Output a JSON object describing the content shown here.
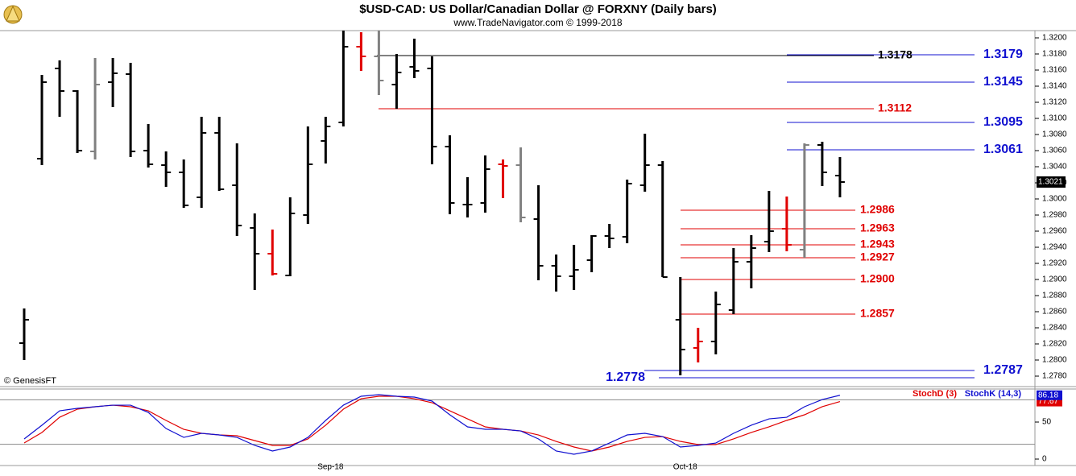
{
  "chart_data": [
    {
      "type": "ohlc",
      "title": "$USD-CAD:  US Dollar/Canadian Dollar @ FORXNY  (Daily bars)",
      "subtitle": "www.TradeNavigator.com © 1999-2018",
      "copyright": "© GenesisFT",
      "categories": [
        null,
        null,
        null,
        null,
        null,
        null,
        null,
        null,
        null,
        null,
        null,
        null,
        null,
        null,
        null,
        null,
        null,
        "Sep-18",
        null,
        null,
        null,
        null,
        null,
        null,
        null,
        null,
        null,
        null,
        null,
        null,
        null,
        null,
        null,
        null,
        null,
        null,
        null,
        "Oct-18",
        null,
        null,
        null,
        null,
        null,
        null,
        null,
        null,
        null
      ],
      "open": [
        1.2821,
        1.305,
        1.3162,
        1.3134,
        1.3059,
        1.3145,
        1.3155,
        1.306,
        1.3042,
        1.3033,
        1.3002,
        1.3082,
        1.3017,
        1.2964,
        1.2932,
        1.2905,
        1.298,
        1.3072,
        1.3095,
        1.3189,
        1.3177,
        1.3142,
        1.3164,
        1.3162,
        1.3065,
        1.2993,
        1.2995,
        1.3043,
        1.3042,
        1.2975,
        1.2917,
        1.2904,
        1.2924,
        1.2954,
        1.2953,
        1.3017,
        1.3042,
        1.285,
        1.2815,
        1.2823,
        1.2862,
        1.2922,
        1.2947,
        1.2963,
        1.2937,
        1.3067,
        1.3029
      ],
      "high": [
        1.2864,
        1.3154,
        1.3172,
        1.3135,
        1.3175,
        1.3175,
        1.3169,
        1.3093,
        1.3059,
        1.3049,
        1.3102,
        1.3102,
        1.3069,
        1.2982,
        1.2962,
        1.3002,
        1.309,
        1.3102,
        1.3209,
        1.3207,
        1.3209,
        1.318,
        1.3199,
        1.3177,
        1.3079,
        1.3027,
        1.3054,
        1.3049,
        1.3064,
        1.3017,
        1.2931,
        1.2943,
        1.2955,
        1.2969,
        1.3024,
        1.3081,
        1.3047,
        1.2903,
        1.284,
        1.2885,
        1.2939,
        1.2955,
        1.301,
        1.3003,
        1.3069,
        1.3071,
        1.3052
      ],
      "low": [
        1.28,
        1.3042,
        1.3102,
        1.3057,
        1.3049,
        1.3114,
        1.3052,
        1.3039,
        1.3015,
        1.2989,
        1.2989,
        1.301,
        1.2954,
        1.2887,
        1.2905,
        1.2904,
        1.2969,
        1.3044,
        1.309,
        1.3159,
        1.3129,
        1.3112,
        1.315,
        1.3043,
        1.2981,
        1.2977,
        1.2983,
        1.3001,
        1.2971,
        1.2899,
        1.2885,
        1.2887,
        1.2909,
        1.2939,
        1.2945,
        1.3009,
        1.2903,
        1.2781,
        1.2797,
        1.2807,
        1.2857,
        1.2889,
        1.2934,
        1.2935,
        1.2927,
        1.3016,
        1.3002
      ],
      "close": [
        1.285,
        1.3145,
        1.3134,
        1.306,
        1.3142,
        1.3156,
        1.3059,
        1.3043,
        1.3033,
        1.2992,
        1.3082,
        1.3012,
        1.2967,
        1.2932,
        1.2907,
        1.2982,
        1.3043,
        1.309,
        1.3189,
        1.3177,
        1.3147,
        1.3157,
        1.3159,
        1.3065,
        1.2995,
        1.2993,
        1.3037,
        1.3041,
        1.2977,
        1.2917,
        1.2904,
        1.2912,
        1.2954,
        1.2951,
        1.3019,
        1.3042,
        1.2903,
        1.2813,
        1.2823,
        1.2869,
        1.2922,
        1.2939,
        1.296,
        1.2943,
        1.3067,
        1.3033,
        1.3021
      ],
      "colors": [
        "#000000",
        "#000000",
        "#000000",
        "#000000",
        "#808080",
        "#000000",
        "#000000",
        "#000000",
        "#000000",
        "#000000",
        "#000000",
        "#000000",
        "#000000",
        "#000000",
        "#e00000",
        "#000000",
        "#000000",
        "#000000",
        "#000000",
        "#e00000",
        "#808080",
        "#000000",
        "#000000",
        "#000000",
        "#000000",
        "#000000",
        "#000000",
        "#e00000",
        "#808080",
        "#000000",
        "#000000",
        "#000000",
        "#000000",
        "#000000",
        "#000000",
        "#000000",
        "#000000",
        "#000000",
        "#e00000",
        "#000000",
        "#000000",
        "#000000",
        "#000000",
        "#e00000",
        "#808080",
        "#000000",
        "#000000"
      ],
      "ylim": [
        1.2769,
        1.3209
      ],
      "yticks": [
        {
          "value": 1.278,
          "label": "1.2780"
        },
        {
          "value": 1.28,
          "label": "1.2800"
        },
        {
          "value": 1.282,
          "label": "1.2820"
        },
        {
          "value": 1.284,
          "label": "1.2840"
        },
        {
          "value": 1.286,
          "label": "1.2860"
        },
        {
          "value": 1.288,
          "label": "1.2880"
        },
        {
          "value": 1.29,
          "label": "1.2900"
        },
        {
          "value": 1.292,
          "label": "1.2920"
        },
        {
          "value": 1.294,
          "label": "1.2940"
        },
        {
          "value": 1.296,
          "label": "1.2960"
        },
        {
          "value": 1.298,
          "label": "1.2980"
        },
        {
          "value": 1.3,
          "label": "1.3000"
        },
        {
          "value": 1.302,
          "label": "1.3020"
        },
        {
          "value": 1.304,
          "label": "1.3040"
        },
        {
          "value": 1.306,
          "label": "1.3060"
        },
        {
          "value": 1.308,
          "label": "1.3080"
        },
        {
          "value": 1.31,
          "label": "1.3100"
        },
        {
          "value": 1.312,
          "label": "1.3120"
        },
        {
          "value": 1.314,
          "label": "1.3140"
        },
        {
          "value": 1.316,
          "label": "1.3160"
        },
        {
          "value": 1.318,
          "label": "1.3180"
        },
        {
          "value": 1.32,
          "label": "1.3200"
        }
      ],
      "last": 1.3021,
      "levels": [
        {
          "value": 1.3179,
          "color": "#1010d0"
        },
        {
          "value": 1.3145,
          "color": "#1010d0"
        },
        {
          "value": 1.3095,
          "color": "#1010d0"
        },
        {
          "value": 1.3061,
          "color": "#1010d0"
        },
        {
          "value": 1.2787,
          "color": "#1010d0"
        },
        {
          "value": 1.2778,
          "color": "#1010d0"
        },
        {
          "value": 1.3178,
          "color": "#000000"
        },
        {
          "value": 1.3112,
          "color": "#e00000"
        },
        {
          "value": 1.2986,
          "color": "#e00000"
        },
        {
          "value": 1.2963,
          "color": "#e00000"
        },
        {
          "value": 1.2943,
          "color": "#e00000"
        },
        {
          "value": 1.2927,
          "color": "#e00000"
        },
        {
          "value": 1.29,
          "label": "1.2900",
          "color": "#e00000"
        },
        {
          "value": 1.2857,
          "color": "#e00000"
        }
      ]
    },
    {
      "type": "line",
      "series": [
        {
          "name": "StochD (3)",
          "color": "#e00000",
          "values": [
            21.7,
            35.9,
            56.5,
            67.4,
            70.7,
            72.8,
            70.7,
            65.2,
            52.2,
            40.2,
            34.8,
            32.6,
            31.5,
            25.0,
            18.5,
            18.5,
            27.2,
            45.7,
            67.4,
            81.5,
            84.8,
            84.8,
            81.5,
            76.1,
            65.2,
            54.3,
            43.5,
            40.2,
            38.0,
            32.6,
            23.9,
            16.3,
            10.9,
            16.3,
            23.9,
            29.3,
            30.4,
            23.9,
            19.6,
            19.6,
            27.2,
            35.9,
            43.5,
            52.2,
            59.8,
            70.7,
            77.67
          ]
        },
        {
          "name": "StochK (14,3)",
          "color": "#1010d0",
          "values": [
            27.2,
            45.7,
            65.2,
            68.5,
            70.7,
            72.8,
            72.8,
            63.0,
            41.3,
            29.3,
            34.8,
            32.6,
            29.3,
            18.5,
            10.9,
            16.3,
            29.3,
            52.2,
            72.8,
            84.8,
            87.0,
            84.8,
            83.7,
            78.3,
            59.8,
            43.5,
            40.2,
            40.2,
            38.0,
            27.2,
            10.9,
            6.5,
            10.9,
            21.7,
            32.6,
            34.8,
            30.4,
            16.3,
            18.5,
            21.7,
            34.8,
            45.7,
            54.3,
            56.5,
            70.7,
            80.4,
            86.18
          ]
        }
      ],
      "ylim": [
        -8.7,
        94.6
      ],
      "yticks": [
        0,
        50
      ],
      "reference_lines": [
        20,
        80
      ]
    }
  ]
}
